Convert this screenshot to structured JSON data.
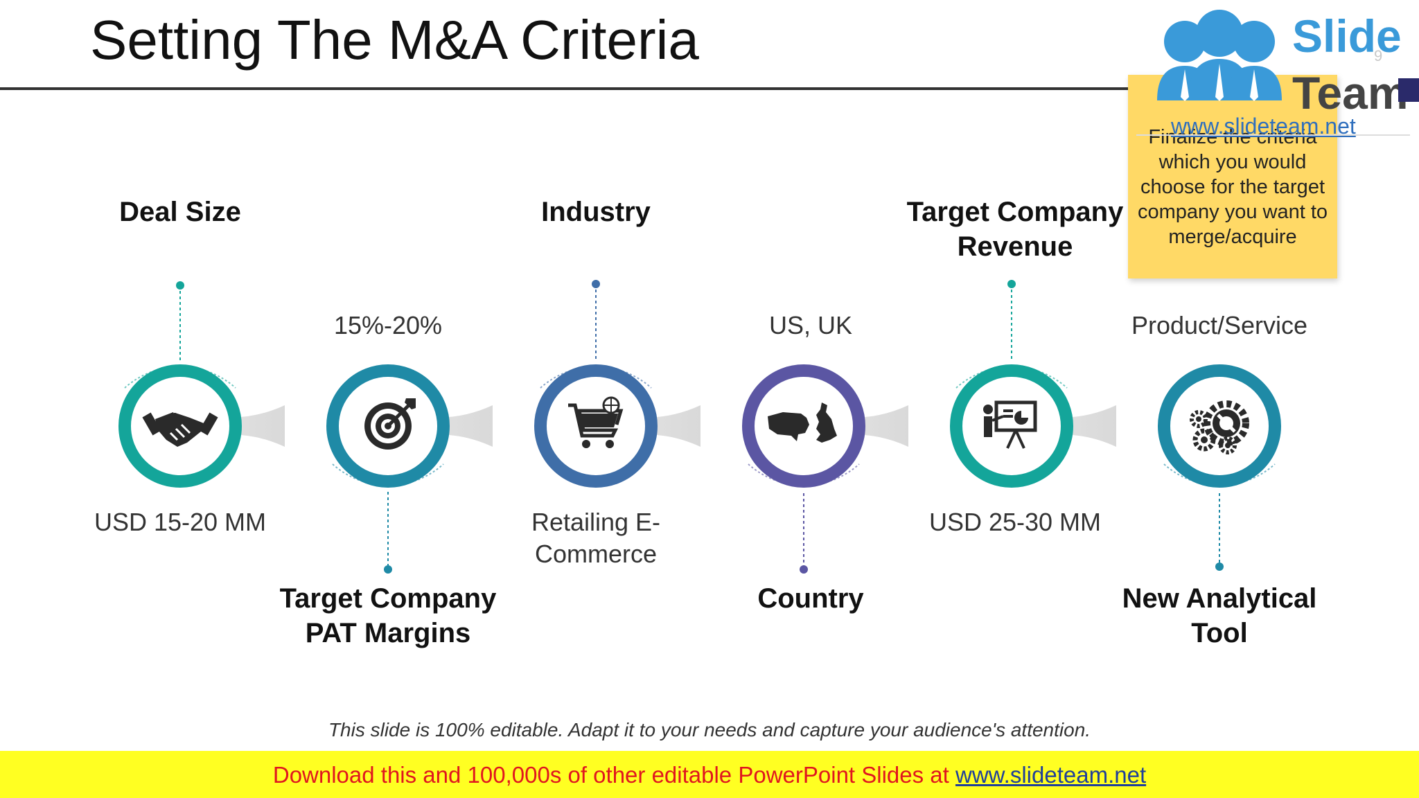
{
  "title": "Setting The M&A Criteria",
  "page_number": "9",
  "logo": {
    "line1": "Slide",
    "line2": "Team",
    "url": "www.slideteam.net"
  },
  "sticky_note": "Finalize the criteria which you would choose for the target company you want to merge/acquire",
  "criteria": [
    {
      "heading": "Deal Size",
      "value": "USD 15-20 MM",
      "icon": "handshake-icon",
      "color": "#14a59a"
    },
    {
      "heading": "Target Company PAT Margins",
      "value": "15%-20%",
      "icon": "target-icon",
      "color": "#1f8aa6"
    },
    {
      "heading": "Industry",
      "value": "Retailing E-Commerce",
      "icon": "shopping-cart-icon",
      "color": "#3f6ea8"
    },
    {
      "heading": "Country",
      "value": "US, UK",
      "icon": "map-icon",
      "color": "#5b56a3"
    },
    {
      "heading": "Target Company Revenue",
      "value": "USD 25-30 MM",
      "icon": "presentation-icon",
      "color": "#14a59a"
    },
    {
      "heading": "New Analytical Tool",
      "value": "Product/Service",
      "icon": "gears-icon",
      "color": "#1f8aa6"
    }
  ],
  "footer_note": "This slide is 100% editable. Adapt it to your needs and capture your audience's attention.",
  "banner": {
    "text": "Download this and 100,000s of other editable PowerPoint Slides at ",
    "link": "www.slideteam.net"
  }
}
